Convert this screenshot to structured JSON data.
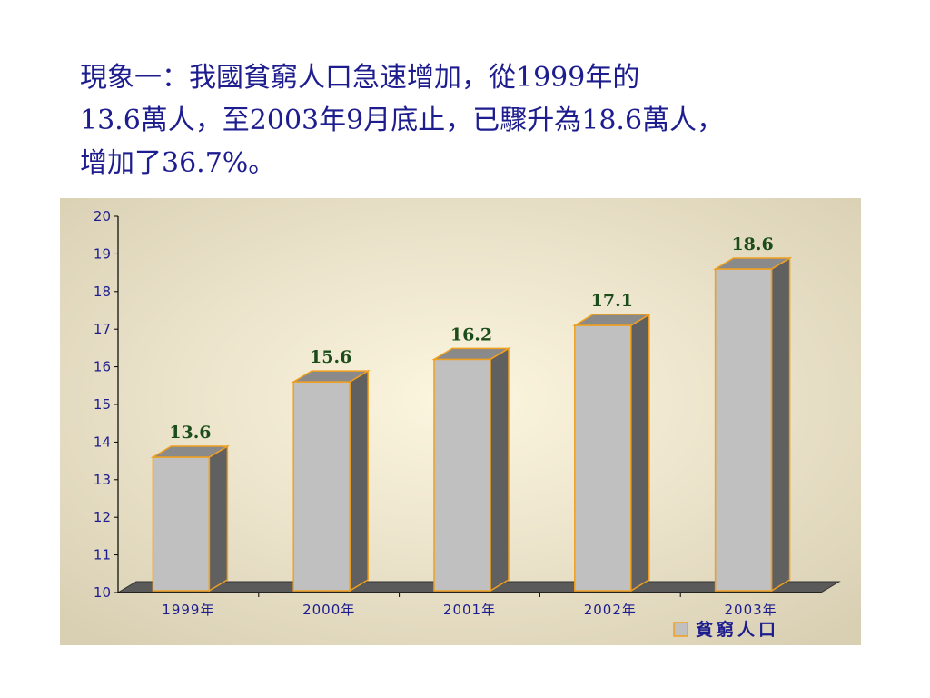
{
  "slide": {
    "title_lines": [
      "現象一：我國貧窮人口急速增加，從1999年的",
      "13.6萬人，至2003年9月底止，已驟升為18.6萬人，",
      "增加了36.7%。"
    ]
  },
  "chart_data": {
    "type": "bar",
    "title": "",
    "xlabel": "",
    "ylabel": "",
    "categories": [
      "1999年",
      "2000年",
      "2001年",
      "2002年",
      "2003年"
    ],
    "series": [
      {
        "name": "貧窮人口",
        "values": [
          13.6,
          15.6,
          16.2,
          17.1,
          18.6
        ]
      }
    ],
    "value_labels": [
      "13.6",
      "15.6",
      "16.2",
      "17.1",
      "18.6"
    ],
    "ylim": [
      10,
      20
    ],
    "yticks": [
      "10",
      "11",
      "12",
      "13",
      "14",
      "15",
      "16",
      "17",
      "18",
      "19",
      "20"
    ],
    "grid": false,
    "legend": "bottom-right",
    "three_d": true,
    "colors": {
      "bar_front": "#c0c0c0",
      "bar_side": "#606060",
      "bar_top": "#8a8a8a",
      "bar_edge": "#f0a020",
      "value_label": "#1a4d1a",
      "axis_text": "#1d1d8f",
      "floor": "#5a5a5a",
      "bg_center": "#fdf6e0",
      "bg_edge": "#d9d0b4"
    }
  }
}
